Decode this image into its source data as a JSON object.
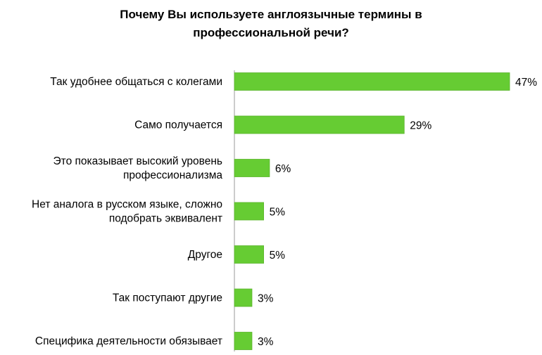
{
  "chart_data": {
    "type": "bar",
    "orientation": "horizontal",
    "title_lines": [
      "Почему Вы используете англоязычные термины в",
      "профессиональной речи?"
    ],
    "categories": [
      [
        "Так удобнее общаться с колегами"
      ],
      [
        "Само получается"
      ],
      [
        "Это показывает высокий уровень",
        "профессионализма"
      ],
      [
        "Нет аналога в русском языке, сложно",
        "подобрать эквивалент"
      ],
      [
        "Другое"
      ],
      [
        "Так поступают другие"
      ],
      [
        "Специфика деятельности обязывает"
      ]
    ],
    "values": [
      47,
      29,
      6,
      5,
      5,
      3,
      3
    ],
    "value_labels": [
      "47%",
      "29%",
      "6%",
      "5%",
      "5%",
      "3%",
      "3%"
    ],
    "unit": "%",
    "xlim": [
      0,
      47
    ],
    "grid": false,
    "legend": "none",
    "bar_color": "#66cc33",
    "bar_border_color": "#5bb52c"
  }
}
